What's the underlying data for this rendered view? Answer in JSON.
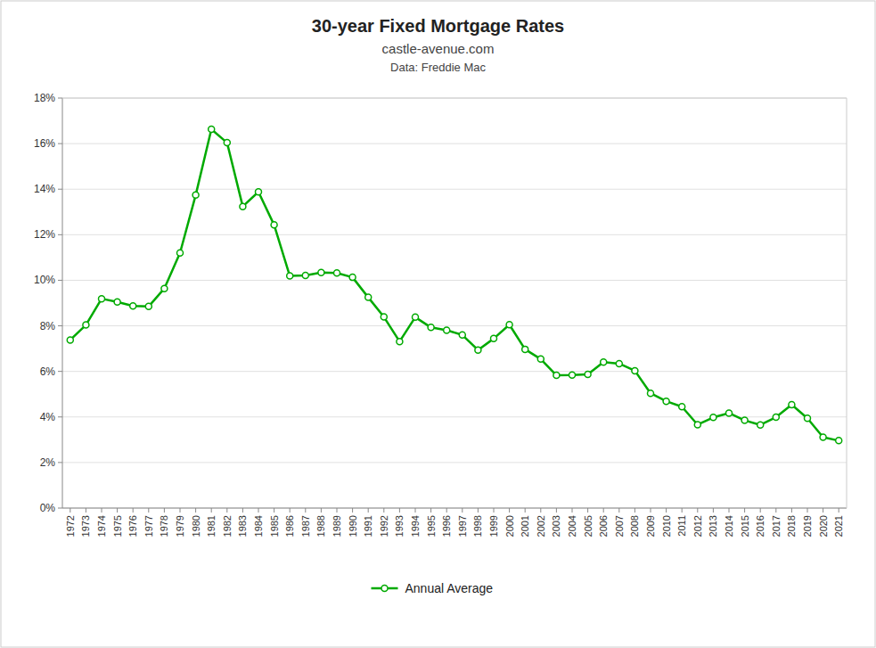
{
  "chart_data": {
    "type": "line",
    "title": "30-year Fixed Mortgage Rates",
    "subtitle": [
      "castle-avenue.com",
      "Data: Freddie Mac"
    ],
    "x": [
      1972,
      1973,
      1974,
      1975,
      1976,
      1977,
      1978,
      1979,
      1980,
      1981,
      1982,
      1983,
      1984,
      1985,
      1986,
      1987,
      1988,
      1989,
      1990,
      1991,
      1992,
      1993,
      1994,
      1995,
      1996,
      1997,
      1998,
      1999,
      2000,
      2001,
      2002,
      2003,
      2004,
      2005,
      2006,
      2007,
      2008,
      2009,
      2010,
      2011,
      2012,
      2013,
      2014,
      2015,
      2016,
      2017,
      2018,
      2019,
      2020,
      2021
    ],
    "series": [
      {
        "name": "Annual Average",
        "color": "#00AA00",
        "marker": "circle",
        "values": [
          7.38,
          8.04,
          9.19,
          9.05,
          8.87,
          8.85,
          9.64,
          11.2,
          13.74,
          16.63,
          16.04,
          13.24,
          13.88,
          12.43,
          10.19,
          10.21,
          10.34,
          10.32,
          10.13,
          9.25,
          8.39,
          7.31,
          8.38,
          7.93,
          7.81,
          7.6,
          6.94,
          7.44,
          8.05,
          6.97,
          6.54,
          5.83,
          5.84,
          5.87,
          6.41,
          6.34,
          6.03,
          5.04,
          4.69,
          4.45,
          3.66,
          3.98,
          4.17,
          3.85,
          3.65,
          3.99,
          4.54,
          3.94,
          3.11,
          2.96
        ]
      }
    ],
    "xlim": [
      1971.5,
      2021.5
    ],
    "xticks": [
      1972,
      1973,
      1974,
      1975,
      1976,
      1977,
      1978,
      1979,
      1980,
      1981,
      1982,
      1983,
      1984,
      1985,
      1986,
      1987,
      1988,
      1989,
      1990,
      1991,
      1992,
      1993,
      1994,
      1995,
      1996,
      1997,
      1998,
      1999,
      2000,
      2001,
      2002,
      2003,
      2004,
      2005,
      2006,
      2007,
      2008,
      2009,
      2010,
      2011,
      2012,
      2013,
      2014,
      2015,
      2016,
      2017,
      2018,
      2019,
      2020,
      2021
    ],
    "ylim": [
      0,
      18
    ],
    "yticks": [
      {
        "value": 0,
        "label": "0%"
      },
      {
        "value": 2,
        "label": "2%"
      },
      {
        "value": 4,
        "label": "4%"
      },
      {
        "value": 6,
        "label": "6%"
      },
      {
        "value": 8,
        "label": "8%"
      },
      {
        "value": 10,
        "label": "10%"
      },
      {
        "value": 12,
        "label": "12%"
      },
      {
        "value": 14,
        "label": "14%"
      },
      {
        "value": 16,
        "label": "16%"
      },
      {
        "value": 18,
        "label": "18%"
      }
    ],
    "grid": true,
    "legend": "bottom"
  }
}
